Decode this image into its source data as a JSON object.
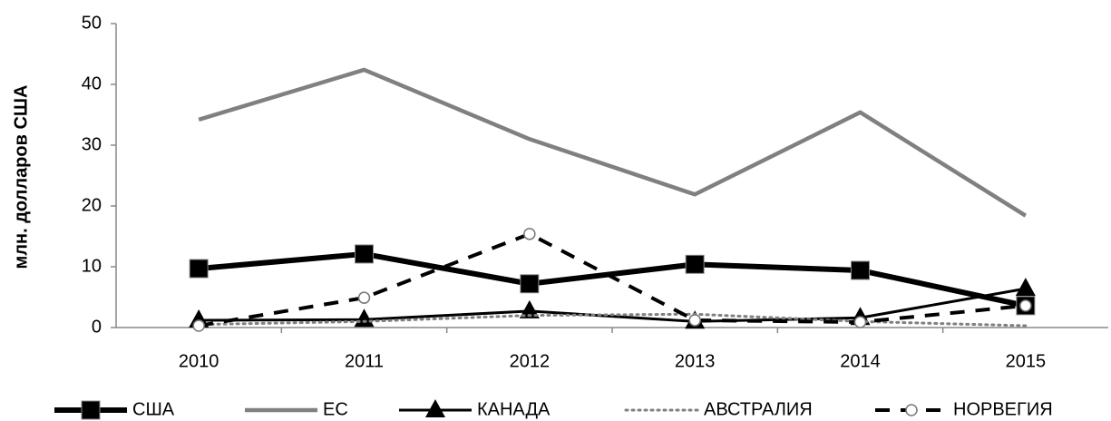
{
  "chart_data": {
    "type": "line",
    "y_label": "млн. долларов США",
    "categories": [
      "2010",
      "2011",
      "2012",
      "2013",
      "2014",
      "2015"
    ],
    "ylim": [
      0,
      50
    ],
    "yticks": [
      0,
      10,
      20,
      30,
      40,
      50
    ],
    "legend": "bottom",
    "series": [
      {
        "name": "США",
        "color": "#000000",
        "line": "solid",
        "marker": "square",
        "values": [
          9.7,
          12.1,
          7.2,
          10.4,
          9.4,
          3.6
        ]
      },
      {
        "name": "ЕС",
        "color": "#808080",
        "line": "solid",
        "marker": "none",
        "values": [
          34.2,
          42.4,
          31.0,
          21.9,
          35.4,
          18.4
        ]
      },
      {
        "name": "КАНАДА",
        "color": "#000000",
        "line": "solid",
        "marker": "triangle",
        "values": [
          1.2,
          1.3,
          2.7,
          1.0,
          1.6,
          6.4
        ]
      },
      {
        "name": "АВСТРАЛИЯ",
        "color": "#808080",
        "line": "dotted",
        "marker": "none",
        "values": [
          0.5,
          1.0,
          2.0,
          2.2,
          1.0,
          0.3
        ]
      },
      {
        "name": "НОРВЕГИЯ",
        "color": "#000000",
        "line": "dashed",
        "marker": "circle",
        "values": [
          0.3,
          4.9,
          15.4,
          1.2,
          0.9,
          3.6
        ]
      }
    ]
  }
}
